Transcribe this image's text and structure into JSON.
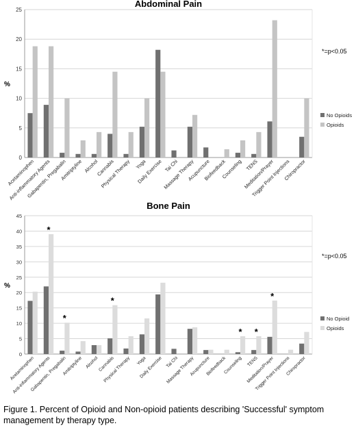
{
  "caption": "Figure 1. Percent of Opioid and Non-opioid patients describing 'Successful' symptom management by therapy type.",
  "chart_data": [
    {
      "type": "bar",
      "title": "Abdominal Pain",
      "ylabel": "%",
      "xlabel": "",
      "ylim": [
        0,
        25
      ],
      "yticks": [
        0,
        5,
        10,
        15,
        20,
        25
      ],
      "grid": true,
      "legend_position": "right",
      "annotation": "*=p<0.05",
      "categories": [
        "Acetaminophen",
        "Anti-inflammatory Agents",
        "Gabapentin, Pregabalin",
        "Amitriptyline",
        "Alcohol",
        "Cannabis",
        "Physical Therapy",
        "Yoga",
        "Daily Exercise",
        "Tai Chi",
        "Massage Therapy",
        "Acupuncture",
        "Biofeedback",
        "Counseling",
        "TENS",
        "Meditation/Prayer",
        "Trigger Point Injections",
        "Chiropractor"
      ],
      "series": [
        {
          "name": "No Opioids",
          "color": "#707070",
          "values": [
            7.5,
            8.9,
            0.8,
            0.6,
            0.6,
            4.0,
            0.6,
            5.2,
            18.2,
            1.2,
            5.2,
            1.7,
            0.0,
            0.8,
            0.6,
            6.1,
            0.0,
            3.5
          ]
        },
        {
          "name": "Opioids",
          "color": "#c4c4c4",
          "values": [
            18.8,
            18.8,
            10.0,
            2.9,
            4.3,
            14.5,
            4.3,
            10.0,
            14.5,
            0.0,
            7.2,
            0.0,
            1.4,
            2.9,
            4.3,
            23.2,
            0.0,
            10.0
          ]
        }
      ],
      "significant": []
    },
    {
      "type": "bar",
      "title": "Bone Pain",
      "ylabel": "%",
      "xlabel": "",
      "ylim": [
        0,
        45
      ],
      "yticks": [
        0,
        5,
        10,
        15,
        20,
        25,
        30,
        35,
        40,
        45
      ],
      "grid": true,
      "legend_position": "right",
      "annotation": "*=p<0.05",
      "categories": [
        "Acetaminophen",
        "Anti-inflammatory Agents",
        "Gabapentin, Pregabalin",
        "Amitriptyline",
        "Alcohol",
        "Cannabis",
        "Physical Therapy",
        "Yoga",
        "Daily Exercise",
        "Tai Chi",
        "Massage Therapy",
        "Acupuncture",
        "Biofeedback",
        "Counseling",
        "TENS",
        "Meditation/Prayer",
        "Trigger Point Injections",
        "Chiropractor"
      ],
      "series": [
        {
          "name": "No Opioid",
          "color": "#707070",
          "values": [
            17.3,
            22.0,
            1.1,
            0.8,
            2.9,
            5.1,
            1.8,
            6.4,
            19.4,
            1.7,
            8.2,
            1.3,
            0.0,
            0.6,
            1.3,
            5.6,
            0.0,
            3.4
          ]
        },
        {
          "name": "Opioids",
          "color": "#dcdcdc",
          "values": [
            20.3,
            39.0,
            10.2,
            4.2,
            2.9,
            15.9,
            5.8,
            11.6,
            23.2,
            0.0,
            8.7,
            1.4,
            1.4,
            5.8,
            5.8,
            17.4,
            1.4,
            7.2
          ]
        }
      ],
      "significant": [
        "Anti-inflammatory Agents",
        "Gabapentin, Pregabalin",
        "Cannabis",
        "Counseling",
        "TENS",
        "Meditation/Prayer"
      ]
    }
  ]
}
